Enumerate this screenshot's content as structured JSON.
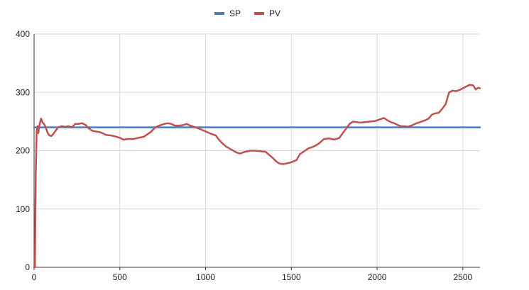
{
  "chart_data": {
    "type": "line",
    "title": "",
    "xlabel": "",
    "ylabel": "",
    "xlim": [
      0,
      2600
    ],
    "ylim": [
      0,
      400
    ],
    "x_ticks": [
      "0",
      "500",
      "1000",
      "1500",
      "2000",
      "2500"
    ],
    "y_ticks": [
      "0",
      "100",
      "200",
      "300",
      "400"
    ],
    "grid": true,
    "legend_position": "top-center",
    "series": [
      {
        "name": "SP",
        "color": "#4a7ebb",
        "points": [
          [
            0,
            240
          ],
          [
            2600,
            240
          ]
        ]
      },
      {
        "name": "PV",
        "color": "#c0504d",
        "points": [
          [
            0,
            0
          ],
          [
            5,
            0
          ],
          [
            10,
            160
          ],
          [
            15,
            232
          ],
          [
            20,
            242
          ],
          [
            25,
            230
          ],
          [
            30,
            242
          ],
          [
            40,
            255
          ],
          [
            50,
            248
          ],
          [
            60,
            245
          ],
          [
            70,
            238
          ],
          [
            80,
            230
          ],
          [
            90,
            226
          ],
          [
            100,
            225
          ],
          [
            110,
            228
          ],
          [
            120,
            232
          ],
          [
            140,
            240
          ],
          [
            160,
            242
          ],
          [
            180,
            241
          ],
          [
            200,
            242
          ],
          [
            220,
            240
          ],
          [
            240,
            246
          ],
          [
            260,
            246
          ],
          [
            280,
            247
          ],
          [
            300,
            244
          ],
          [
            320,
            238
          ],
          [
            340,
            234
          ],
          [
            360,
            233
          ],
          [
            380,
            232
          ],
          [
            400,
            230
          ],
          [
            420,
            227
          ],
          [
            450,
            226
          ],
          [
            480,
            224
          ],
          [
            500,
            222
          ],
          [
            520,
            219
          ],
          [
            550,
            220
          ],
          [
            580,
            220
          ],
          [
            610,
            222
          ],
          [
            640,
            224
          ],
          [
            660,
            228
          ],
          [
            680,
            232
          ],
          [
            700,
            238
          ],
          [
            720,
            242
          ],
          [
            740,
            244
          ],
          [
            760,
            246
          ],
          [
            780,
            247
          ],
          [
            800,
            246
          ],
          [
            820,
            243
          ],
          [
            850,
            243
          ],
          [
            870,
            244
          ],
          [
            890,
            246
          ],
          [
            910,
            243
          ],
          [
            940,
            240
          ],
          [
            970,
            237
          ],
          [
            1000,
            233
          ],
          [
            1030,
            229
          ],
          [
            1060,
            226
          ],
          [
            1080,
            218
          ],
          [
            1100,
            212
          ],
          [
            1120,
            207
          ],
          [
            1150,
            202
          ],
          [
            1180,
            197
          ],
          [
            1200,
            195
          ],
          [
            1230,
            198
          ],
          [
            1260,
            200
          ],
          [
            1290,
            200
          ],
          [
            1320,
            199
          ],
          [
            1350,
            198
          ],
          [
            1370,
            193
          ],
          [
            1390,
            188
          ],
          [
            1410,
            182
          ],
          [
            1430,
            178
          ],
          [
            1450,
            177
          ],
          [
            1470,
            178
          ],
          [
            1500,
            180
          ],
          [
            1530,
            184
          ],
          [
            1550,
            194
          ],
          [
            1580,
            200
          ],
          [
            1600,
            204
          ],
          [
            1630,
            207
          ],
          [
            1660,
            212
          ],
          [
            1690,
            220
          ],
          [
            1720,
            221
          ],
          [
            1750,
            219
          ],
          [
            1780,
            222
          ],
          [
            1800,
            230
          ],
          [
            1820,
            238
          ],
          [
            1840,
            246
          ],
          [
            1860,
            250
          ],
          [
            1880,
            249
          ],
          [
            1900,
            248
          ],
          [
            1930,
            249
          ],
          [
            1960,
            250
          ],
          [
            1990,
            251
          ],
          [
            2020,
            254
          ],
          [
            2040,
            256
          ],
          [
            2060,
            252
          ],
          [
            2080,
            249
          ],
          [
            2100,
            247
          ],
          [
            2120,
            244
          ],
          [
            2140,
            242
          ],
          [
            2160,
            242
          ],
          [
            2180,
            241
          ],
          [
            2200,
            243
          ],
          [
            2230,
            247
          ],
          [
            2260,
            250
          ],
          [
            2280,
            252
          ],
          [
            2300,
            255
          ],
          [
            2320,
            262
          ],
          [
            2340,
            264
          ],
          [
            2360,
            265
          ],
          [
            2380,
            272
          ],
          [
            2400,
            280
          ],
          [
            2420,
            300
          ],
          [
            2440,
            303
          ],
          [
            2460,
            302
          ],
          [
            2480,
            304
          ],
          [
            2500,
            307
          ],
          [
            2520,
            310
          ],
          [
            2540,
            313
          ],
          [
            2560,
            312
          ],
          [
            2575,
            305
          ],
          [
            2590,
            308
          ],
          [
            2600,
            307
          ]
        ]
      }
    ]
  }
}
